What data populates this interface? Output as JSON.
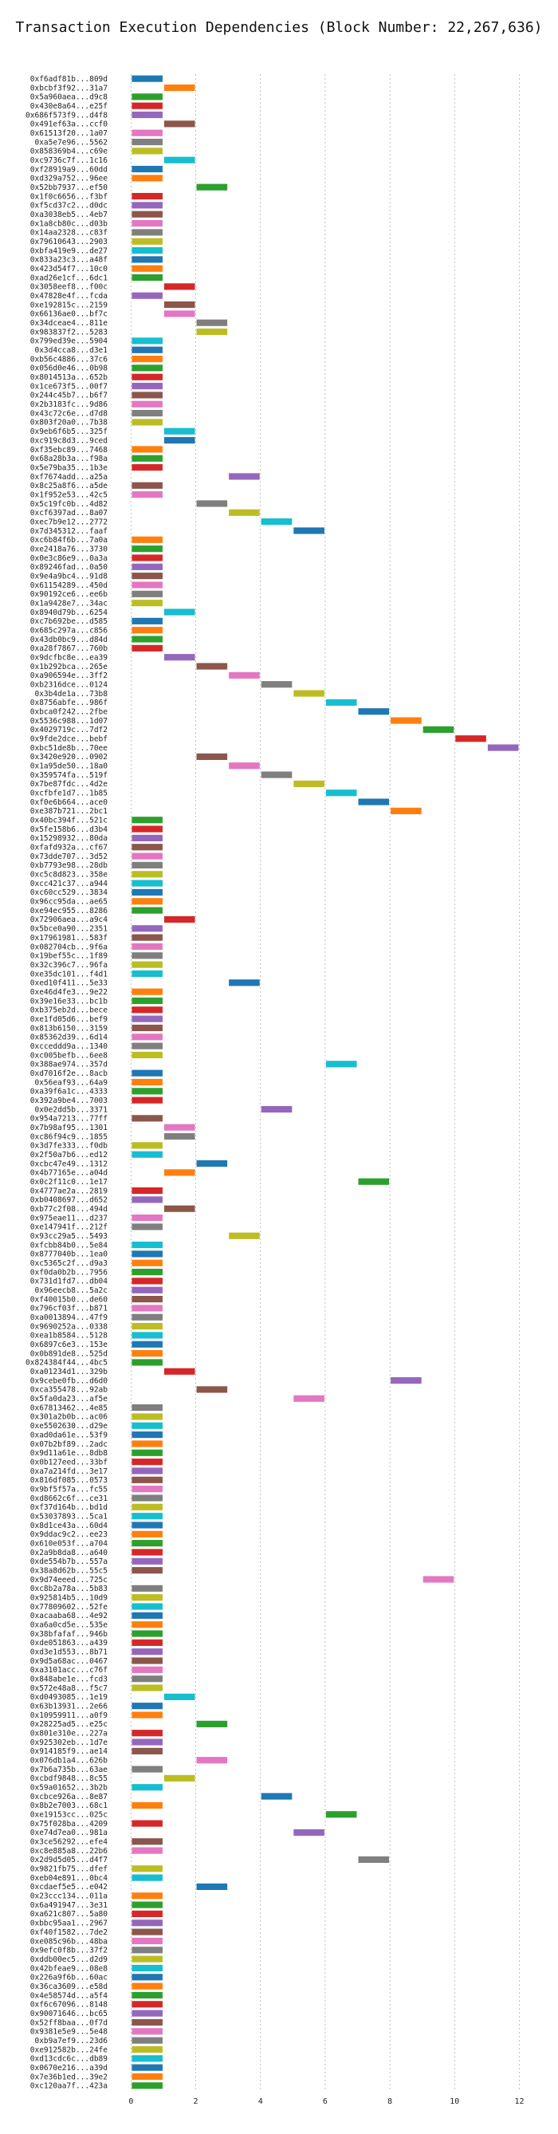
{
  "chart_data": {
    "type": "gantt",
    "title": "Transaction Execution Dependencies (Block Number: 22,267,636)",
    "xlabel": "",
    "ylabel": "",
    "xlim": [
      -0.6,
      12.9
    ],
    "xticks": [
      0,
      2,
      4,
      6,
      8,
      10,
      12
    ],
    "grid": true,
    "palette": [
      "#1f77b4",
      "#ff7f0e",
      "#2ca02c",
      "#d62728",
      "#9467bd",
      "#8c564b",
      "#e377c2",
      "#7f7f7f",
      "#bcbd22",
      "#17becf"
    ],
    "rows": [
      {
        "label": "0xf6adf81b...809d",
        "start": 0
      },
      {
        "label": "0xbcbf3f92...31a7",
        "start": 1
      },
      {
        "label": "0x5a960aea...d9c8",
        "start": 0
      },
      {
        "label": "0x430e8a64...e25f",
        "start": 0
      },
      {
        "label": "0x686f573f9...d4f8",
        "start": 0
      },
      {
        "label": "0x491ef63a...ccf0",
        "start": 1
      },
      {
        "label": "0x61513f20...1a07",
        "start": 0
      },
      {
        "label": "0xa5e7e96...5562",
        "start": 0
      },
      {
        "label": "0x858369b4...c69e",
        "start": 0
      },
      {
        "label": "0xc9736c7f...1c16",
        "start": 1
      },
      {
        "label": "0xf28919a9...60dd",
        "start": 0
      },
      {
        "label": "0xd329a752...96ee",
        "start": 0
      },
      {
        "label": "0x52bb7937...ef50",
        "start": 2
      },
      {
        "label": "0x1f0c6656...f3bf",
        "start": 0
      },
      {
        "label": "0xf5cd37c2...d0dc",
        "start": 0
      },
      {
        "label": "0xa3038eb5...4eb7",
        "start": 0
      },
      {
        "label": "0x1a8cb80c...d03b",
        "start": 0
      },
      {
        "label": "0x14aa2328...c83f",
        "start": 0
      },
      {
        "label": "0x79610643...2903",
        "start": 0
      },
      {
        "label": "0xbfa419e9...de27",
        "start": 0
      },
      {
        "label": "0x833a23c3...a48f",
        "start": 0
      },
      {
        "label": "0x423d54f7...10c0",
        "start": 0
      },
      {
        "label": "0xad26e1cf...6dc1",
        "start": 0
      },
      {
        "label": "0x3058eef8...f00c",
        "start": 1
      },
      {
        "label": "0x47828e4f...fcda",
        "start": 0
      },
      {
        "label": "0xe192815c...2159",
        "start": 1
      },
      {
        "label": "0x66136ae0...bf7c",
        "start": 1
      },
      {
        "label": "0x34dceae4...811e",
        "start": 2
      },
      {
        "label": "0x983837f2...5283",
        "start": 2
      },
      {
        "label": "0x799ed39e...5904",
        "start": 0
      },
      {
        "label": "0x3d4cca8...d3e1",
        "start": 0
      },
      {
        "label": "0xb56c4886...37c6",
        "start": 0
      },
      {
        "label": "0x056d0e46...0b98",
        "start": 0
      },
      {
        "label": "0x8014513a...652b",
        "start": 0
      },
      {
        "label": "0x1ce673f5...00f7",
        "start": 0
      },
      {
        "label": "0x244c45b7...b6f7",
        "start": 0
      },
      {
        "label": "0x2b3183fc...9d86",
        "start": 0
      },
      {
        "label": "0x43c72c6e...d7d8",
        "start": 0
      },
      {
        "label": "0x803f20a0...7b38",
        "start": 0
      },
      {
        "label": "0x9eb6f6b5...325f",
        "start": 1
      },
      {
        "label": "0xc919c8d3...9ced",
        "start": 1
      },
      {
        "label": "0xf35ebc89...7468",
        "start": 0
      },
      {
        "label": "0x68a28b3a...f98a",
        "start": 0
      },
      {
        "label": "0x5e79ba35...1b3e",
        "start": 0
      },
      {
        "label": "0xf7674add...a25a",
        "start": 3
      },
      {
        "label": "0x8c25a8f6...a5de",
        "start": 0
      },
      {
        "label": "0x1f952e53...42c5",
        "start": 0
      },
      {
        "label": "0x5c19fc0b...4d82",
        "start": 2
      },
      {
        "label": "0xcf6397ad...8a07",
        "start": 3
      },
      {
        "label": "0xec7b9e12...2772",
        "start": 4
      },
      {
        "label": "0x7d345312...faaf",
        "start": 5
      },
      {
        "label": "0xc6b84f6b...7a0a",
        "start": 0
      },
      {
        "label": "0xe2418a76...3730",
        "start": 0
      },
      {
        "label": "0x0e3c86e9...0a3a",
        "start": 0
      },
      {
        "label": "0x89246fad...0a50",
        "start": 0
      },
      {
        "label": "0x9e4a9bc4...91d8",
        "start": 0
      },
      {
        "label": "0x61154289...450d",
        "start": 0
      },
      {
        "label": "0x90192ce6...ee6b",
        "start": 0
      },
      {
        "label": "0x1a9428e7...34ac",
        "start": 0
      },
      {
        "label": "0x8940d79b...6254",
        "start": 1
      },
      {
        "label": "0xc7b692be...d585",
        "start": 0
      },
      {
        "label": "0x685c297a...c856",
        "start": 0
      },
      {
        "label": "0x43db0bc9...d84d",
        "start": 0
      },
      {
        "label": "0xa28f7867...760b",
        "start": 0
      },
      {
        "label": "0x9dcfbc8e...ea39",
        "start": 1
      },
      {
        "label": "0x1b292bca...265e",
        "start": 2
      },
      {
        "label": "0xa906594e...3ff2",
        "start": 3
      },
      {
        "label": "0xb2316dce...0124",
        "start": 4
      },
      {
        "label": "0x3b4de1a...73b8",
        "start": 5
      },
      {
        "label": "0x8756abfe...986f",
        "start": 6
      },
      {
        "label": "0xbca0f242...2fbe",
        "start": 7
      },
      {
        "label": "0x5536c988...1d07",
        "start": 8
      },
      {
        "label": "0x4029719c...7df2",
        "start": 9
      },
      {
        "label": "0x9fde2dce...bebf",
        "start": 10
      },
      {
        "label": "0xbc51de8b...70ee",
        "start": 11
      },
      {
        "label": "0x3420e920...0902",
        "start": 2
      },
      {
        "label": "0x1a95de50...18a0",
        "start": 3
      },
      {
        "label": "0x359574fa...519f",
        "start": 4
      },
      {
        "label": "0x7be87fdc...4d2e",
        "start": 5
      },
      {
        "label": "0xcfbfe1d7...1b85",
        "start": 6
      },
      {
        "label": "0xf0e6b664...ace0",
        "start": 7
      },
      {
        "label": "0xe387b721...2bc1",
        "start": 8
      },
      {
        "label": "0x40bc394f...521c",
        "start": 0
      },
      {
        "label": "0x5fe158b6...d3b4",
        "start": 0
      },
      {
        "label": "0x15298932...80da",
        "start": 0
      },
      {
        "label": "0xfafd932a...cf67",
        "start": 0
      },
      {
        "label": "0x73dde707...3d52",
        "start": 0
      },
      {
        "label": "0xb7793e98...28db",
        "start": 0
      },
      {
        "label": "0xc5c8d823...358e",
        "start": 0
      },
      {
        "label": "0xcc421c37...a944",
        "start": 0
      },
      {
        "label": "0xc60cc529...3834",
        "start": 0
      },
      {
        "label": "0x96cc95da...ae65",
        "start": 0
      },
      {
        "label": "0xe94ec955...8286",
        "start": 0
      },
      {
        "label": "0x72906aea...a9c4",
        "start": 1
      },
      {
        "label": "0x5bce0a90...2351",
        "start": 0
      },
      {
        "label": "0x17961981...583f",
        "start": 0
      },
      {
        "label": "0x082704cb...9f6a",
        "start": 0
      },
      {
        "label": "0x19bef55c...1f89",
        "start": 0
      },
      {
        "label": "0x32c396c7...96fa",
        "start": 0
      },
      {
        "label": "0xe35dc101...f4d1",
        "start": 0
      },
      {
        "label": "0xed10f411...5e33",
        "start": 3
      },
      {
        "label": "0xe46d4fe3...9e22",
        "start": 0
      },
      {
        "label": "0x39e16e33...bc1b",
        "start": 0
      },
      {
        "label": "0xb375eb2d...bece",
        "start": 0
      },
      {
        "label": "0xe1fd05d6...bef9",
        "start": 0
      },
      {
        "label": "0x813b6150...3159",
        "start": 0
      },
      {
        "label": "0x85362d39...6d14",
        "start": 0
      },
      {
        "label": "0xcceddd9a...1340",
        "start": 0
      },
      {
        "label": "0xc005befb...6ee8",
        "start": 0
      },
      {
        "label": "0x388ae974...357d",
        "start": 6
      },
      {
        "label": "0xd7016f2e...8acb",
        "start": 0
      },
      {
        "label": "0x56eaf93...64a9",
        "start": 0
      },
      {
        "label": "0xa39f6a1c...4333",
        "start": 0
      },
      {
        "label": "0x392a9be4...7003",
        "start": 0
      },
      {
        "label": "0x0e2dd5b...3371",
        "start": 4
      },
      {
        "label": "0x954a7213...77ff",
        "start": 0
      },
      {
        "label": "0x7b98af95...1301",
        "start": 1
      },
      {
        "label": "0xc86f94c9...1855",
        "start": 1
      },
      {
        "label": "0x3d7fe333...f0db",
        "start": 0
      },
      {
        "label": "0x2f50a7b6...ed12",
        "start": 0
      },
      {
        "label": "0xcbc47e49...1312",
        "start": 2
      },
      {
        "label": "0x4b77165e...a04d",
        "start": 1
      },
      {
        "label": "0x0c2f11c0...1e17",
        "start": 7
      },
      {
        "label": "0x4777ae2a...2819",
        "start": 0
      },
      {
        "label": "0xb0408697...d652",
        "start": 0
      },
      {
        "label": "0xb77c2f08...494d",
        "start": 1
      },
      {
        "label": "0x975eae11...d237",
        "start": 0
      },
      {
        "label": "0xe147941f...212f",
        "start": 0
      },
      {
        "label": "0x93cc29a5...5493",
        "start": 3
      },
      {
        "label": "0xfcbb84b0...5e84",
        "start": 0
      },
      {
        "label": "0x8777040b...1ea0",
        "start": 0
      },
      {
        "label": "0xc5365c2f...d9a3",
        "start": 0
      },
      {
        "label": "0xf0da0b2b...7956",
        "start": 0
      },
      {
        "label": "0x731d1fd7...db04",
        "start": 0
      },
      {
        "label": "0x96eecb8...5a2c",
        "start": 0
      },
      {
        "label": "0xf40015b0...de60",
        "start": 0
      },
      {
        "label": "0x796cf03f...b871",
        "start": 0
      },
      {
        "label": "0xa0013894...47f9",
        "start": 0
      },
      {
        "label": "0x9690252a...0338",
        "start": 0
      },
      {
        "label": "0xea1b8584...5128",
        "start": 0
      },
      {
        "label": "0x6897c6e3...153e",
        "start": 0
      },
      {
        "label": "0x0b891de8...525d",
        "start": 0
      },
      {
        "label": "0x824384f44...4bc5",
        "start": 0
      },
      {
        "label": "0xa01234d1...329b",
        "start": 1
      },
      {
        "label": "0x9cebe0fb...d6d0",
        "start": 8
      },
      {
        "label": "0xca355478...92ab",
        "start": 2
      },
      {
        "label": "0x5fa0da23...af5e",
        "start": 5
      },
      {
        "label": "0x67813462...4e85",
        "start": 0
      },
      {
        "label": "0x301a2b0b...ac06",
        "start": 0
      },
      {
        "label": "0xe5502630...d29e",
        "start": 0
      },
      {
        "label": "0xad0da61e...53f9",
        "start": 0
      },
      {
        "label": "0x07b2bf89...2adc",
        "start": 0
      },
      {
        "label": "0x9d11a61e...8db8",
        "start": 0
      },
      {
        "label": "0x0b127eed...33bf",
        "start": 0
      },
      {
        "label": "0xa7a214fd...3e17",
        "start": 0
      },
      {
        "label": "0x816df085...0573",
        "start": 0
      },
      {
        "label": "0x9bf5f57a...fc55",
        "start": 0
      },
      {
        "label": "0xd8662c6f...ce31",
        "start": 0
      },
      {
        "label": "0xf37d164b...bd1d",
        "start": 0
      },
      {
        "label": "0x53037893...5ca1",
        "start": 0
      },
      {
        "label": "0x8d1ce43a...60d4",
        "start": 0
      },
      {
        "label": "0x9ddac9c2...ee23",
        "start": 0
      },
      {
        "label": "0x610e053f...a704",
        "start": 0
      },
      {
        "label": "0x2a9b8da8...a640",
        "start": 0
      },
      {
        "label": "0xde554b7b...557a",
        "start": 0
      },
      {
        "label": "0x38a8d62b...55c5",
        "start": 0
      },
      {
        "label": "0x9d74eeed...725c",
        "start": 9
      },
      {
        "label": "0xc8b2a78a...5b83",
        "start": 0
      },
      {
        "label": "0x925814b5...10d9",
        "start": 0
      },
      {
        "label": "0x77809602...52fe",
        "start": 0
      },
      {
        "label": "0xacaaba68...4e92",
        "start": 0
      },
      {
        "label": "0xa6a0cd5e...535e",
        "start": 0
      },
      {
        "label": "0x38bfafaf...946b",
        "start": 0
      },
      {
        "label": "0xde051863...a439",
        "start": 0
      },
      {
        "label": "0xd3e1d553...8b71",
        "start": 0
      },
      {
        "label": "0x9d5a68ac...0467",
        "start": 0
      },
      {
        "label": "0xa3101acc...c76f",
        "start": 0
      },
      {
        "label": "0x848abe1e...fcd3",
        "start": 0
      },
      {
        "label": "0x572e48a8...f5c7",
        "start": 0
      },
      {
        "label": "0xd0493085...1e19",
        "start": 1
      },
      {
        "label": "0x63b13931...2e66",
        "start": 0
      },
      {
        "label": "0x10959911...a0f9",
        "start": 0
      },
      {
        "label": "0x28225ad5...e25c",
        "start": 2
      },
      {
        "label": "0x801e310e...227a",
        "start": 0
      },
      {
        "label": "0x925302eb...1d7e",
        "start": 0
      },
      {
        "label": "0x914185f9...ae14",
        "start": 0
      },
      {
        "label": "0x076db1a4...626b",
        "start": 2
      },
      {
        "label": "0x7b6a735b...63ae",
        "start": 0
      },
      {
        "label": "0xcbdf9848...8c55",
        "start": 1
      },
      {
        "label": "0x59a01652...3b2b",
        "start": 0
      },
      {
        "label": "0xcbce926a...8e87",
        "start": 4
      },
      {
        "label": "0x8b2e7003...68c1",
        "start": 0
      },
      {
        "label": "0xe19153cc...025c",
        "start": 6
      },
      {
        "label": "0x75f028ba...4209",
        "start": 0
      },
      {
        "label": "0xe74d7ea0...981a",
        "start": 5
      },
      {
        "label": "0x3ce56292...efe4",
        "start": 0
      },
      {
        "label": "0xc8e885a8...22b6",
        "start": 0
      },
      {
        "label": "0x2d9d5d05...d4f7",
        "start": 7
      },
      {
        "label": "0x9821fb75...dfef",
        "start": 0
      },
      {
        "label": "0xeb04e891...0bc4",
        "start": 0
      },
      {
        "label": "0xcdaef5e5...e042",
        "start": 2
      },
      {
        "label": "0x23ccc134...011a",
        "start": 0
      },
      {
        "label": "0x6a491947...3e31",
        "start": 0
      },
      {
        "label": "0xa621c807...5a80",
        "start": 0
      },
      {
        "label": "0xbbc95aa1...2967",
        "start": 0
      },
      {
        "label": "0xf40f1582...7de2",
        "start": 0
      },
      {
        "label": "0xe085c96b...48ba",
        "start": 0
      },
      {
        "label": "0x9efc0f8b...37f2",
        "start": 0
      },
      {
        "label": "0xddb00ec5...d2d9",
        "start": 0
      },
      {
        "label": "0x42bfeae9...08e8",
        "start": 0
      },
      {
        "label": "0x226a9f6b...60ac",
        "start": 0
      },
      {
        "label": "0x36ca3609...e58d",
        "start": 0
      },
      {
        "label": "0x4e58574d...a5f4",
        "start": 0
      },
      {
        "label": "0xf6c67096...8148",
        "start": 0
      },
      {
        "label": "0x90071646...bc65",
        "start": 0
      },
      {
        "label": "0x52ff8baa...0f7d",
        "start": 0
      },
      {
        "label": "0x9381e5e9...5e48",
        "start": 0
      },
      {
        "label": "0xb9a7ef9...23d6",
        "start": 0
      },
      {
        "label": "0xe912582b...24fe",
        "start": 0
      },
      {
        "label": "0xd13cdc6c...db89",
        "start": 0
      },
      {
        "label": "0x0670e216...a39d",
        "start": 0
      },
      {
        "label": "0x7e36b1ed...39e2",
        "start": 0
      },
      {
        "label": "0xc120aa7f...423a",
        "start": 0
      }
    ]
  }
}
